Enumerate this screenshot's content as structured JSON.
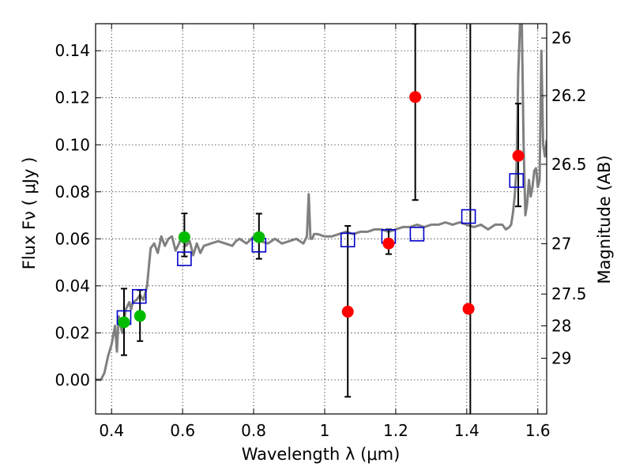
{
  "chart_data": {
    "type": "scatter",
    "title": "",
    "xlabel": "Wavelength  λ (μm)",
    "ylabel": "Flux  Fν  ( μJy )",
    "y2label": "Magnitude (AB)",
    "xlim": [
      0.355,
      1.625
    ],
    "ylim": [
      -0.0145,
      0.1515
    ],
    "xticks": [
      0.4,
      0.6,
      0.8,
      1.0,
      1.2,
      1.4,
      1.6
    ],
    "xtick_labels": [
      "0.4",
      "0.6",
      "0.8",
      "1",
      "1.2",
      "1.4",
      "1.6"
    ],
    "yticks": [
      0.0,
      0.02,
      0.04,
      0.06,
      0.08,
      0.1,
      0.12,
      0.14
    ],
    "ytick_labels": [
      "0.00",
      "0.02",
      "0.04",
      "0.06",
      "0.08",
      "0.10",
      "0.12",
      "0.14"
    ],
    "y2ticks": [
      {
        "flux": 0.1454,
        "label": "26"
      },
      {
        "flux": 0.1209,
        "label": "26.2"
      },
      {
        "flux": 0.0917,
        "label": "26.5"
      },
      {
        "flux": 0.0579,
        "label": "27"
      },
      {
        "flux": 0.0365,
        "label": "27.5"
      },
      {
        "flux": 0.023,
        "label": "28"
      },
      {
        "flux": 0.0092,
        "label": "29"
      }
    ],
    "grid": true,
    "series": [
      {
        "name": "Model SED",
        "kind": "line",
        "color": "#808080",
        "x": [
          0.355,
          0.37,
          0.38,
          0.39,
          0.4,
          0.41,
          0.415,
          0.42,
          0.43,
          0.44,
          0.45,
          0.455,
          0.46,
          0.47,
          0.48,
          0.49,
          0.495,
          0.5,
          0.505,
          0.51,
          0.52,
          0.53,
          0.54,
          0.55,
          0.56,
          0.57,
          0.58,
          0.59,
          0.6,
          0.61,
          0.62,
          0.63,
          0.64,
          0.65,
          0.66,
          0.68,
          0.7,
          0.72,
          0.74,
          0.75,
          0.76,
          0.78,
          0.8,
          0.82,
          0.84,
          0.86,
          0.88,
          0.9,
          0.92,
          0.94,
          0.95,
          0.955,
          0.96,
          0.965,
          0.97,
          0.98,
          1.0,
          1.02,
          1.04,
          1.06,
          1.08,
          1.1,
          1.12,
          1.14,
          1.16,
          1.18,
          1.2,
          1.22,
          1.24,
          1.26,
          1.28,
          1.3,
          1.32,
          1.34,
          1.36,
          1.38,
          1.4,
          1.42,
          1.44,
          1.46,
          1.48,
          1.5,
          1.51,
          1.52,
          1.525,
          1.53,
          1.535,
          1.54,
          1.545,
          1.55,
          1.555,
          1.56,
          1.565,
          1.57,
          1.575,
          1.58,
          1.585,
          1.59,
          1.595,
          1.6,
          1.605,
          1.61,
          1.615,
          1.62,
          1.625
        ],
        "y": [
          0.0,
          0.0,
          0.003,
          0.01,
          0.015,
          0.023,
          0.012,
          0.027,
          0.02,
          0.03,
          0.033,
          0.03,
          0.033,
          0.034,
          0.036,
          0.034,
          0.037,
          0.04,
          0.048,
          0.056,
          0.058,
          0.054,
          0.061,
          0.057,
          0.06,
          0.061,
          0.055,
          0.058,
          0.062,
          0.057,
          0.059,
          0.053,
          0.058,
          0.054,
          0.057,
          0.058,
          0.059,
          0.058,
          0.057,
          0.059,
          0.06,
          0.058,
          0.061,
          0.059,
          0.058,
          0.06,
          0.058,
          0.059,
          0.06,
          0.058,
          0.061,
          0.079,
          0.06,
          0.06,
          0.062,
          0.062,
          0.061,
          0.061,
          0.062,
          0.063,
          0.062,
          0.063,
          0.063,
          0.064,
          0.064,
          0.063,
          0.064,
          0.065,
          0.065,
          0.066,
          0.065,
          0.066,
          0.066,
          0.067,
          0.066,
          0.067,
          0.066,
          0.065,
          0.066,
          0.064,
          0.066,
          0.066,
          0.064,
          0.065,
          0.066,
          0.071,
          0.078,
          0.09,
          0.13,
          0.152,
          0.152,
          0.1,
          0.07,
          0.075,
          0.085,
          0.078,
          0.082,
          0.089,
          0.09,
          0.082,
          0.085,
          0.14,
          0.1,
          0.095,
          0.102
        ]
      },
      {
        "name": "Green photometry",
        "kind": "points",
        "marker": "circle",
        "color": "#00bb00",
        "x": [
          0.435,
          0.48,
          0.605,
          0.815
        ],
        "y": [
          0.0245,
          0.0272,
          0.0607,
          0.0607
        ],
        "yerr_low": [
          0.0105,
          0.0165,
          0.0525,
          0.0515
        ],
        "yerr_high": [
          0.0388,
          0.0382,
          0.0708,
          0.0707
        ]
      },
      {
        "name": "Red photometry",
        "kind": "points",
        "marker": "circle",
        "color": "#ff0000",
        "x": [
          1.065,
          1.18,
          1.255,
          1.405,
          1.545
        ],
        "y": [
          0.029,
          0.058,
          0.1203,
          0.0302,
          0.0953
        ],
        "yerr_low": [
          -0.0072,
          0.0535,
          0.0765,
          null,
          0.0738
        ],
        "yerr_high": [
          0.0655,
          0.064,
          0.1515,
          null,
          0.1175
        ]
      },
      {
        "name": "Model fluxes",
        "kind": "points",
        "marker": "square-open",
        "color": "#0000cc",
        "x": [
          0.435,
          0.478,
          0.605,
          0.815,
          1.065,
          1.18,
          1.26,
          1.405,
          1.54
        ],
        "y": [
          0.0265,
          0.0355,
          0.0515,
          0.0573,
          0.0595,
          0.061,
          0.062,
          0.0695,
          0.0848
        ]
      }
    ],
    "vlines": [
      1.41
    ]
  }
}
